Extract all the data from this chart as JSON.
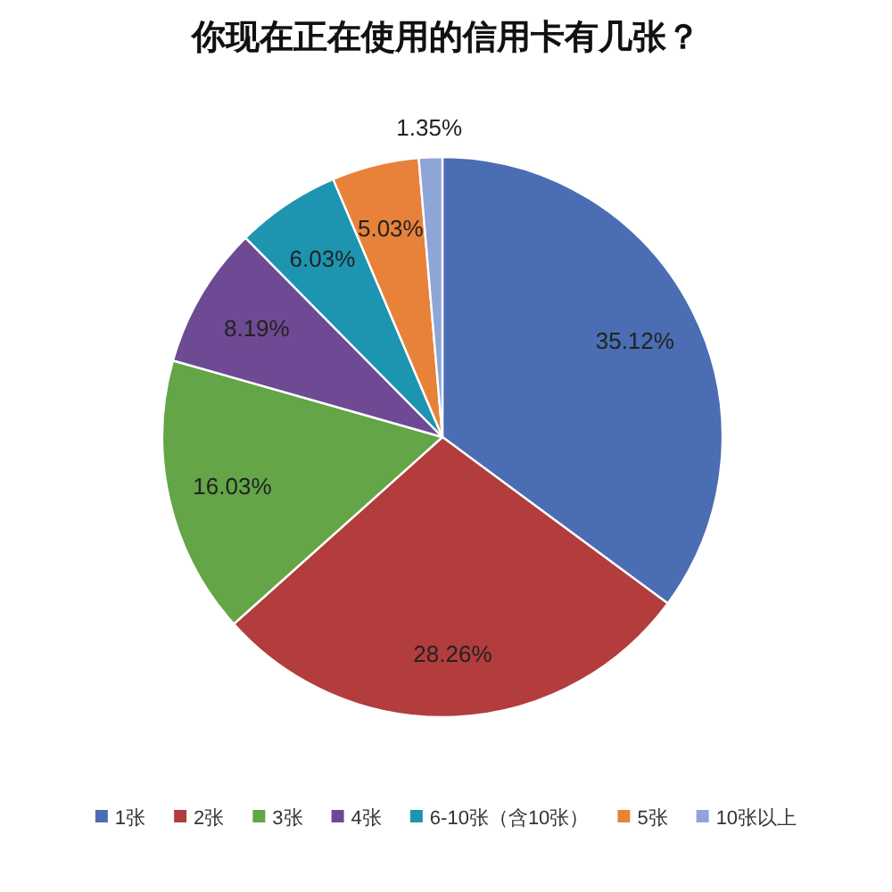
{
  "chart_data": {
    "type": "pie",
    "title": "你现在正在使用的信用卡有几张？",
    "categories": [
      "1张",
      "2张",
      "3张",
      "4张",
      "6-10张（含10张）",
      "5张",
      "10张以上"
    ],
    "values": [
      35.12,
      28.26,
      16.03,
      8.19,
      6.03,
      5.03,
      1.35
    ],
    "colors": [
      "#4a6db3",
      "#b33c3c",
      "#63a547",
      "#6e4a94",
      "#1d95b0",
      "#e8823a",
      "#8ea5d8"
    ],
    "value_labels": [
      "35.12%",
      "28.26%",
      "16.03%",
      "8.19%",
      "6.03%",
      "5.03%",
      "1.35%"
    ],
    "legend": "bottom"
  }
}
